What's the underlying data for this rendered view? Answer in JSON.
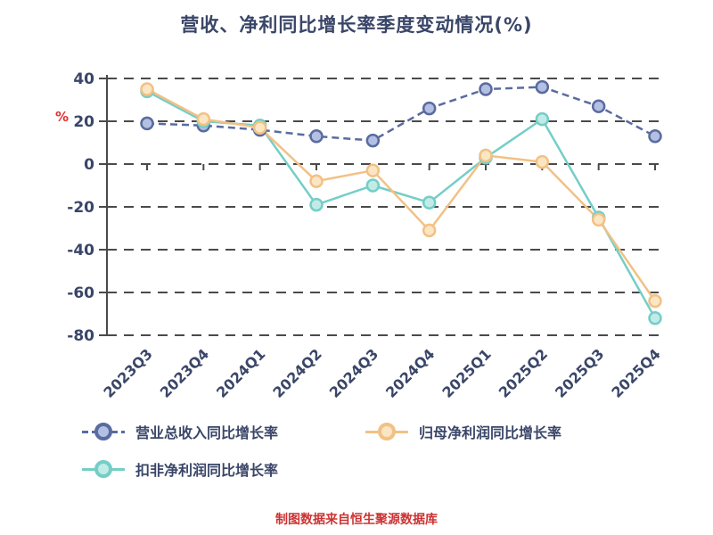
{
  "title": "营收、净利同比增长率季度变动情况(%)",
  "y_axis_unit": "%",
  "footer_note": "制图数据来自恒生聚源数据库",
  "colors": {
    "title_text": "#3a4668",
    "axis_text": "#3a4668",
    "grid_line": "#4a4a4a",
    "unit_label": "#e03030",
    "footer_text": "#cc3232",
    "background": "#ffffff"
  },
  "chart_data": {
    "type": "line",
    "title": "营收、净利同比增长率季度变动情况(%)",
    "ylabel": "%",
    "ylim": [
      -80,
      40
    ],
    "yticks": [
      40,
      20,
      0,
      -20,
      -40,
      -60,
      -80
    ],
    "grid": "horizontal-dashed",
    "legend_position": "bottom-left",
    "categories": [
      "2023Q3",
      "2023Q4",
      "2024Q1",
      "2024Q2",
      "2024Q3",
      "2024Q4",
      "2025Q1",
      "2025Q2",
      "2025Q3",
      "2025Q4"
    ],
    "series": [
      {
        "name": "营业总收入同比增长率",
        "color": "#5a6b9f",
        "marker_fill": "#b3c0e3",
        "line_style": "dashed",
        "values": [
          19,
          18,
          16,
          13,
          11,
          26,
          35,
          36,
          27,
          13
        ]
      },
      {
        "name": "归母净利润同比增长率",
        "color": "#f2c185",
        "marker_fill": "#fbe6c4",
        "line_style": "solid",
        "values": [
          35,
          21,
          17,
          -8,
          -3,
          -31,
          4,
          1,
          -26,
          -64
        ]
      },
      {
        "name": "扣非净利润同比增长率",
        "color": "#74cec7",
        "marker_fill": "#c2ebe7",
        "line_style": "solid",
        "values": [
          34,
          20,
          18,
          -19,
          -10,
          -18,
          3,
          21,
          -25,
          -72
        ]
      }
    ]
  }
}
